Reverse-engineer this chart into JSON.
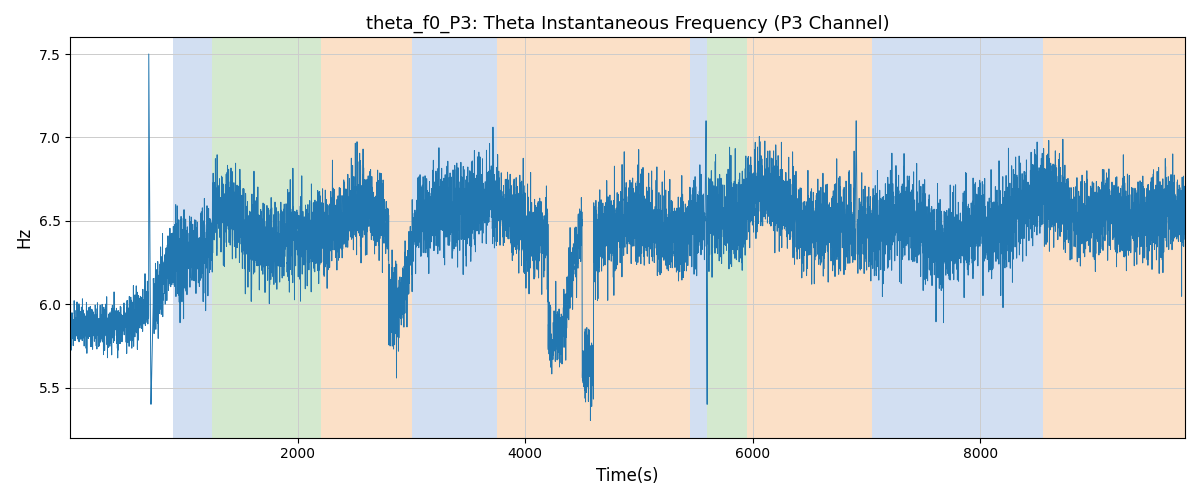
{
  "title": "theta_f0_P3: Theta Instantaneous Frequency (P3 Channel)",
  "xlabel": "Time(s)",
  "ylabel": "Hz",
  "ylim": [
    5.2,
    7.6
  ],
  "xlim": [
    0,
    9800
  ],
  "yticks": [
    5.5,
    6.0,
    6.5,
    7.0,
    7.5
  ],
  "xticks": [
    2000,
    4000,
    6000,
    8000
  ],
  "line_color": "#2277b0",
  "line_width": 0.7,
  "background_color": "#ffffff",
  "grid_color": "#cccccc",
  "seed": 42,
  "n_points": 9800,
  "colored_regions": [
    {
      "start": 900,
      "end": 1250,
      "color": "#aec6e8",
      "alpha": 0.55
    },
    {
      "start": 1250,
      "end": 2200,
      "color": "#b2d8a8",
      "alpha": 0.55
    },
    {
      "start": 2200,
      "end": 3000,
      "color": "#f8c89a",
      "alpha": 0.55
    },
    {
      "start": 3000,
      "end": 3750,
      "color": "#aec6e8",
      "alpha": 0.55
    },
    {
      "start": 3750,
      "end": 5450,
      "color": "#f8c89a",
      "alpha": 0.55
    },
    {
      "start": 5450,
      "end": 5600,
      "color": "#aec6e8",
      "alpha": 0.55
    },
    {
      "start": 5600,
      "end": 5950,
      "color": "#b2d8a8",
      "alpha": 0.55
    },
    {
      "start": 5950,
      "end": 7050,
      "color": "#f8c89a",
      "alpha": 0.55
    },
    {
      "start": 7050,
      "end": 8550,
      "color": "#aec6e8",
      "alpha": 0.55
    },
    {
      "start": 8550,
      "end": 9800,
      "color": "#f8c89a",
      "alpha": 0.55
    }
  ],
  "figsize": [
    12.0,
    5.0
  ],
  "dpi": 100
}
